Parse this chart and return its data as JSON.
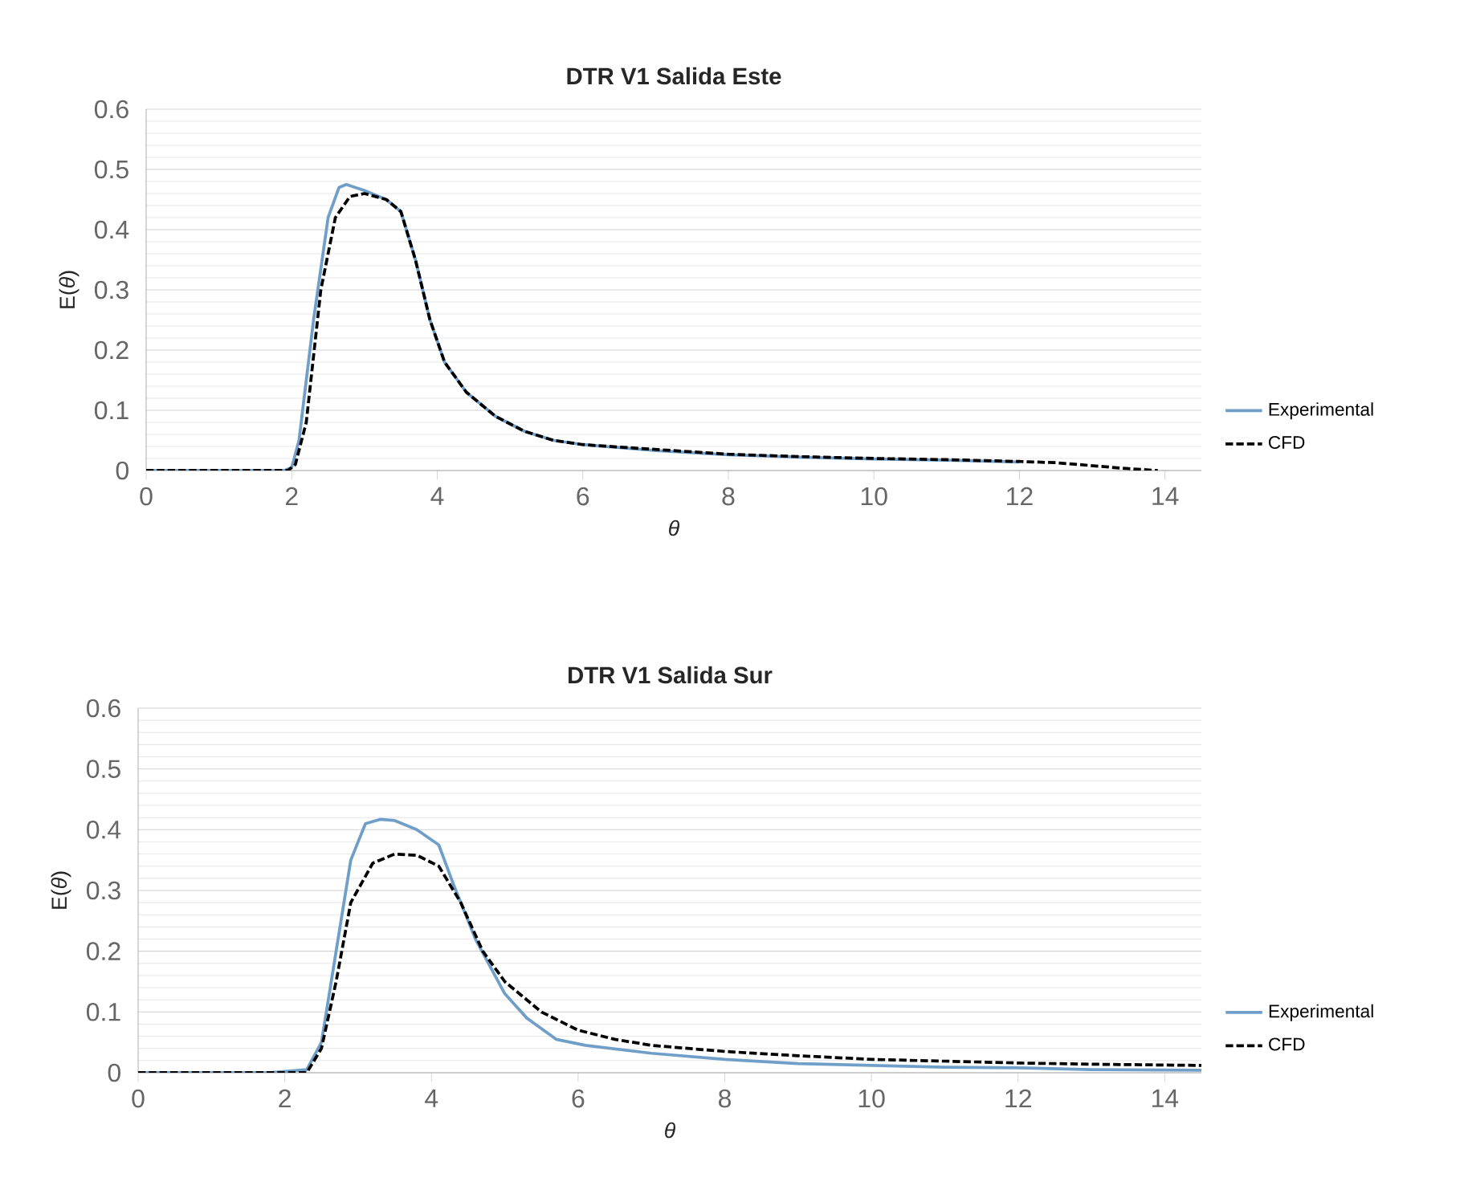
{
  "chart_data": [
    {
      "type": "line",
      "title": "DTR V1 Salida Este",
      "xlabel": "θ",
      "ylabel": "E(*θ*)",
      "xlim": [
        0,
        14.5
      ],
      "xticks": [
        0,
        2,
        4,
        6,
        8,
        10,
        12,
        14
      ],
      "ylim": [
        0,
        0.6
      ],
      "yticks": [
        0,
        0.1,
        0.2,
        0.3,
        0.4,
        0.5,
        0.6
      ],
      "grid": "y",
      "legend": "right",
      "series": [
        {
          "name": "Experimental",
          "color": "#6f9fc8",
          "line_style": "solid",
          "x": [
            0,
            1.9,
            2.0,
            2.1,
            2.3,
            2.5,
            2.65,
            2.75,
            3.0,
            3.3,
            3.5,
            3.7,
            3.9,
            4.1,
            4.4,
            4.8,
            5.2,
            5.6,
            6,
            7,
            8,
            9,
            10,
            11,
            12
          ],
          "values": [
            0,
            0,
            0.005,
            0.05,
            0.25,
            0.42,
            0.47,
            0.475,
            0.465,
            0.45,
            0.43,
            0.35,
            0.25,
            0.18,
            0.13,
            0.09,
            0.065,
            0.05,
            0.043,
            0.033,
            0.026,
            0.022,
            0.019,
            0.017,
            0.014
          ]
        },
        {
          "name": "CFD",
          "color": "#000000",
          "line_style": "dashed",
          "x": [
            0,
            1.95,
            2.05,
            2.2,
            2.4,
            2.6,
            2.8,
            3.0,
            3.3,
            3.5,
            3.7,
            3.9,
            4.1,
            4.4,
            4.8,
            5.2,
            5.6,
            6,
            7,
            8,
            9,
            10,
            11,
            12,
            12.5,
            13,
            13.5,
            13.9
          ],
          "values": [
            0,
            0,
            0.01,
            0.08,
            0.3,
            0.42,
            0.455,
            0.46,
            0.45,
            0.43,
            0.35,
            0.25,
            0.18,
            0.13,
            0.09,
            0.065,
            0.05,
            0.043,
            0.035,
            0.027,
            0.023,
            0.02,
            0.018,
            0.015,
            0.013,
            0.008,
            0.003,
            0
          ]
        }
      ]
    },
    {
      "type": "line",
      "title": "DTR V1 Salida Sur",
      "xlabel": "θ",
      "ylabel": "E(*θ*)",
      "xlim": [
        0,
        14.5
      ],
      "xticks": [
        0,
        2,
        4,
        6,
        8,
        10,
        12,
        14
      ],
      "ylim": [
        0,
        0.6
      ],
      "yticks": [
        0,
        0.1,
        0.2,
        0.3,
        0.4,
        0.5,
        0.6
      ],
      "grid": "y",
      "legend": "right",
      "series": [
        {
          "name": "Experimental",
          "color": "#6f9fc8",
          "line_style": "solid",
          "x": [
            0,
            1.8,
            2.0,
            2.3,
            2.5,
            2.7,
            2.9,
            3.1,
            3.3,
            3.5,
            3.8,
            4.1,
            4.3,
            4.6,
            5.0,
            5.3,
            5.7,
            6.1,
            7,
            8,
            9,
            10,
            11,
            12,
            13,
            14.5
          ],
          "values": [
            0,
            0,
            0.002,
            0.005,
            0.05,
            0.2,
            0.35,
            0.41,
            0.417,
            0.415,
            0.4,
            0.375,
            0.31,
            0.22,
            0.13,
            0.09,
            0.055,
            0.045,
            0.032,
            0.022,
            0.015,
            0.012,
            0.009,
            0.008,
            0.005,
            0.004
          ]
        },
        {
          "name": "CFD",
          "color": "#000000",
          "line_style": "dashed",
          "x": [
            0,
            2.3,
            2.5,
            2.7,
            2.9,
            3.2,
            3.5,
            3.8,
            4.1,
            4.4,
            4.7,
            5.0,
            5.5,
            6,
            6.5,
            7,
            8,
            9,
            10,
            11,
            12,
            13,
            14.5
          ],
          "values": [
            0,
            0,
            0.04,
            0.15,
            0.28,
            0.345,
            0.36,
            0.358,
            0.34,
            0.28,
            0.2,
            0.15,
            0.1,
            0.07,
            0.055,
            0.045,
            0.035,
            0.028,
            0.022,
            0.019,
            0.016,
            0.014,
            0.012
          ]
        }
      ]
    }
  ]
}
